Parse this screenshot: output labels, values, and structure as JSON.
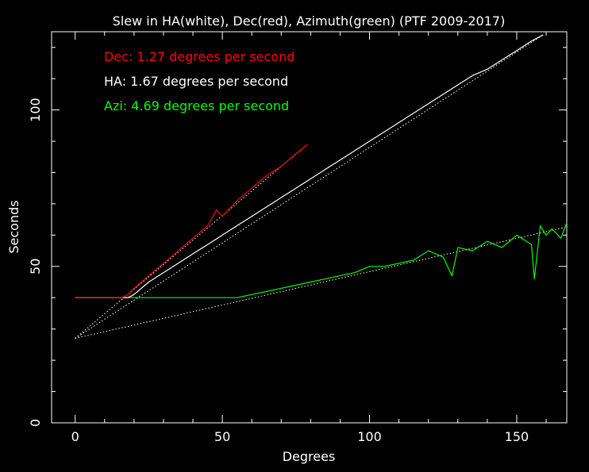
{
  "chart_data": {
    "type": "line",
    "title": "Slew in HA(white), Dec(red), Azimuth(green) (PTF 2009-2017)",
    "xlabel": "Degrees",
    "ylabel": "Seconds",
    "xlim": [
      -8,
      167
    ],
    "ylim": [
      0,
      125
    ],
    "x_ticks": [
      0,
      50,
      100,
      150
    ],
    "y_ticks": [
      0,
      50,
      100
    ],
    "grid": false,
    "legend_position": "top-left",
    "colors": {
      "background": "#000000",
      "axes": "#ffffff",
      "dec": "#ff0000",
      "ha": "#ffffff",
      "azi": "#00ff00"
    },
    "annotations": [
      {
        "text": "Dec: 1.27 degrees per second",
        "color": "#ff0000"
      },
      {
        "text": "HA: 1.67 degrees per second",
        "color": "#ffffff"
      },
      {
        "text": "Azi: 4.69 degrees per second",
        "color": "#00ff00"
      }
    ],
    "series": [
      {
        "name": "Dec",
        "color": "#ff0000",
        "x": [
          0,
          2,
          4,
          6,
          8,
          10,
          12,
          14,
          16,
          18,
          20,
          25,
          30,
          35,
          40,
          45,
          48,
          50,
          55,
          60,
          65,
          70,
          75,
          79
        ],
        "y": [
          40,
          40,
          40,
          40,
          40,
          40,
          40,
          40,
          40,
          41,
          43,
          47,
          51,
          55,
          59,
          63,
          68,
          66,
          71,
          75,
          79,
          82,
          86,
          89
        ]
      },
      {
        "name": "HA",
        "color": "#ffffff",
        "x": [
          0,
          2,
          4,
          6,
          8,
          10,
          12,
          14,
          16,
          18,
          20,
          25,
          30,
          35,
          40,
          45,
          50,
          55,
          60,
          65,
          70,
          75,
          80,
          85,
          90,
          95,
          100,
          105,
          110,
          115,
          120,
          125,
          130,
          135,
          140,
          145,
          150,
          155,
          159
        ],
        "y": [
          40,
          40,
          40,
          40,
          40,
          40,
          40,
          40,
          40,
          40,
          41,
          45,
          48,
          51,
          54,
          57,
          60,
          63,
          66,
          69,
          72,
          75,
          78,
          81,
          84,
          87,
          90,
          93,
          96,
          99,
          102,
          105,
          108,
          111,
          113,
          116,
          119,
          122,
          124
        ]
      },
      {
        "name": "Azi",
        "color": "#00ff00",
        "x": [
          0,
          5,
          10,
          20,
          30,
          40,
          50,
          55,
          60,
          65,
          70,
          75,
          80,
          85,
          90,
          95,
          100,
          105,
          110,
          115,
          120,
          125,
          128,
          130,
          135,
          140,
          145,
          150,
          155,
          156,
          158,
          160,
          162,
          165,
          167
        ],
        "y": [
          40,
          40,
          40,
          40,
          40,
          40,
          40,
          40,
          41,
          42,
          43,
          44,
          45,
          46,
          47,
          48,
          50,
          50,
          51,
          52,
          55,
          53,
          47,
          56,
          55,
          58,
          56,
          60,
          57,
          46,
          63,
          60,
          62,
          59,
          64
        ]
      }
    ],
    "fit_lines": [
      {
        "name": "Dec fit",
        "x": [
          0,
          79
        ],
        "y": [
          27,
          89
        ]
      },
      {
        "name": "HA fit",
        "x": [
          0,
          159
        ],
        "y": [
          27,
          124
        ]
      },
      {
        "name": "Azi fit",
        "x": [
          0,
          167
        ],
        "y": [
          27,
          62.6
        ]
      }
    ]
  }
}
